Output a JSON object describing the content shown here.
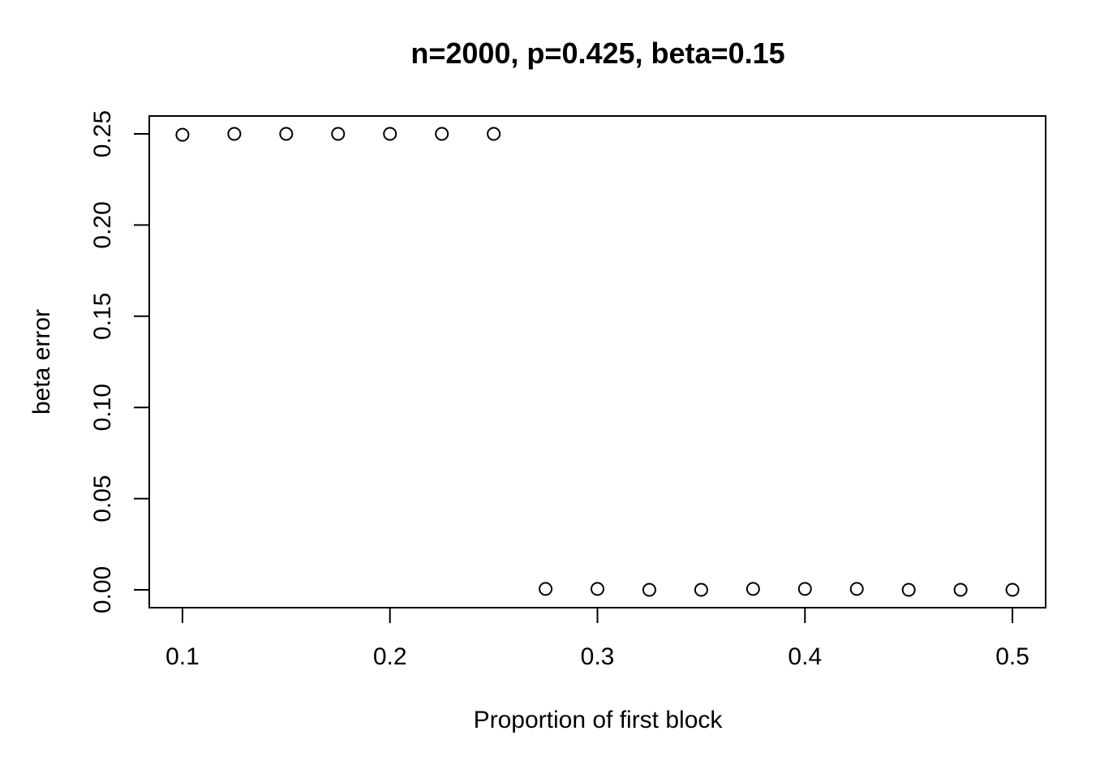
{
  "chart_data": {
    "type": "scatter",
    "title": "n=2000, p=0.425, beta=0.15",
    "xlabel": "Proportion of first block",
    "ylabel": "beta error",
    "xlim": [
      0.084,
      0.516
    ],
    "ylim": [
      -0.0098,
      0.2598
    ],
    "x_ticks": [
      0.1,
      0.2,
      0.3,
      0.4,
      0.5
    ],
    "x_tick_labels": [
      "0.1",
      "0.2",
      "0.3",
      "0.4",
      "0.5"
    ],
    "y_ticks": [
      0.0,
      0.05,
      0.1,
      0.15,
      0.2,
      0.25
    ],
    "y_tick_labels": [
      "0.00",
      "0.05",
      "0.10",
      "0.15",
      "0.20",
      "0.25"
    ],
    "grid": false,
    "marker": "open-circle",
    "marker_color": "#000000",
    "x": [
      0.1,
      0.125,
      0.15,
      0.175,
      0.2,
      0.225,
      0.25,
      0.275,
      0.3,
      0.325,
      0.35,
      0.375,
      0.4,
      0.425,
      0.45,
      0.475,
      0.5
    ],
    "y": [
      0.2495,
      0.25,
      0.25,
      0.25,
      0.25,
      0.25,
      0.25,
      0.0005,
      0.0005,
      0.0,
      0.0,
      0.0005,
      0.0005,
      0.0005,
      0.0,
      0.0,
      0.0
    ]
  }
}
